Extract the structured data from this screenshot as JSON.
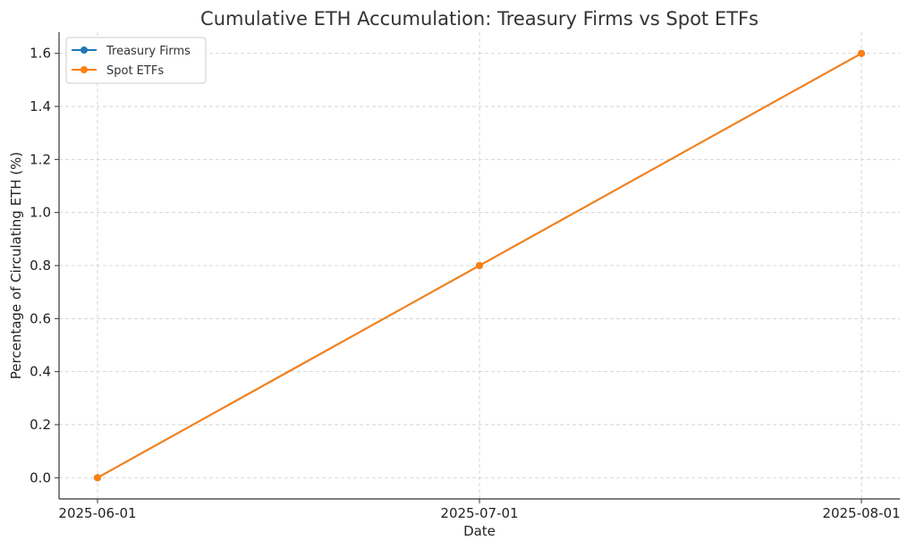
{
  "chart_data": {
    "type": "line",
    "title": "Cumulative ETH Accumulation: Treasury Firms vs Spot ETFs",
    "xlabel": "Date",
    "ylabel": "Percentage of Circulating ETH (%)",
    "x": [
      "2025-06-01",
      "2025-07-01",
      "2025-08-01"
    ],
    "ylim": [
      -0.08,
      1.68
    ],
    "yticks": [
      0.0,
      0.2,
      0.4,
      0.6,
      0.8,
      1.0,
      1.2,
      1.4,
      1.6
    ],
    "ytick_labels": [
      "0.0",
      "0.2",
      "0.4",
      "0.6",
      "0.8",
      "1.0",
      "1.2",
      "1.4",
      "1.6"
    ],
    "grid": true,
    "legend_position": "top-left",
    "series": [
      {
        "name": "Treasury Firms",
        "color": "#1f77b4",
        "values": [
          0.0,
          0.8,
          1.6
        ]
      },
      {
        "name": "Spot ETFs",
        "color": "#ff7f0e",
        "values": [
          0.0,
          0.8,
          1.6
        ]
      }
    ]
  }
}
